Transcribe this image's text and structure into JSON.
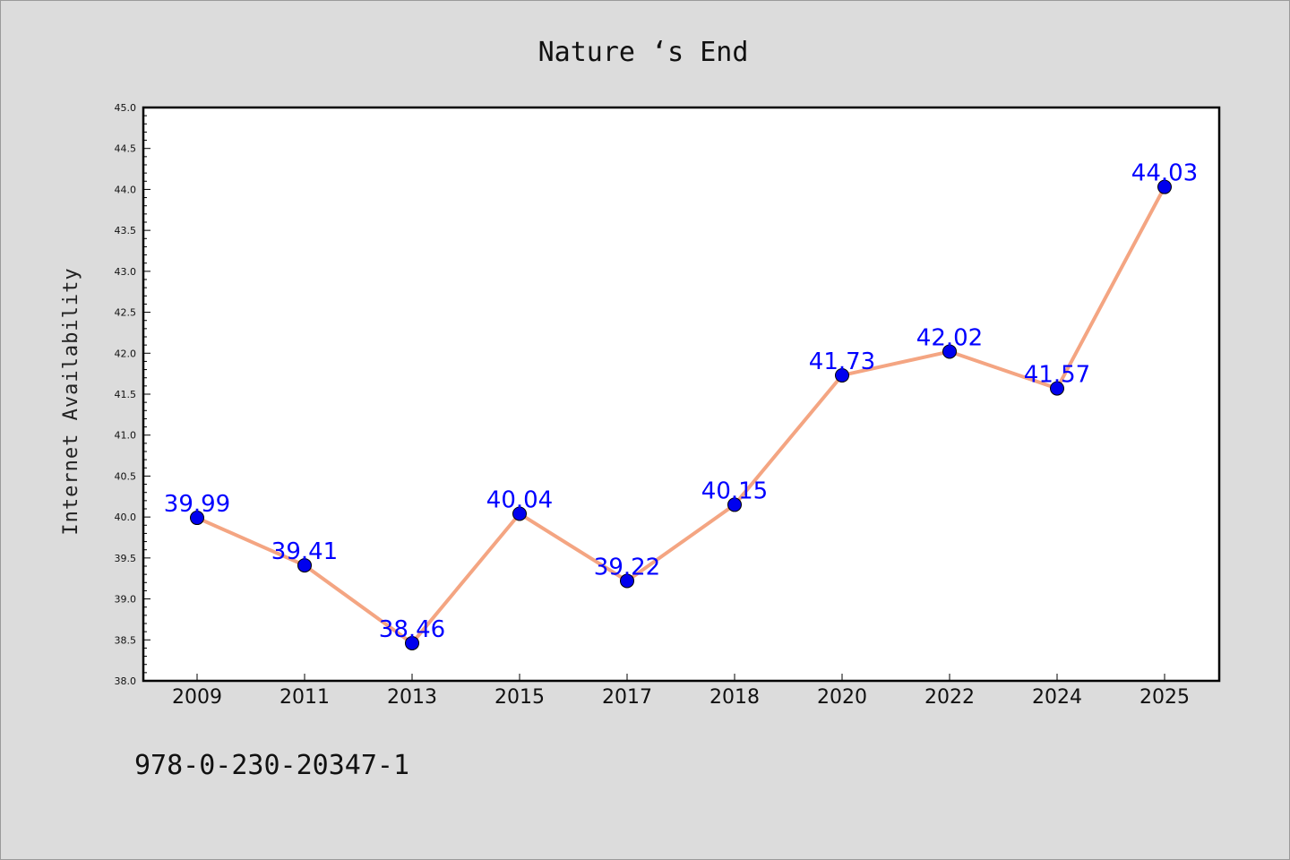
{
  "chart_data": {
    "type": "line",
    "title": "Nature ‘s End",
    "ylabel": "Internet Availability",
    "xlabel": "",
    "categories": [
      "2009",
      "2011",
      "2013",
      "2015",
      "2017",
      "2018",
      "2020",
      "2022",
      "2024",
      "2025"
    ],
    "values": [
      39.99,
      39.41,
      38.46,
      40.04,
      39.22,
      40.15,
      41.73,
      42.02,
      41.57,
      44.03
    ],
    "data_labels": [
      "39.99",
      "39.41",
      "38.46",
      "40.04",
      "39.22",
      "40.15",
      "41.73",
      "42.02",
      "41.57",
      "44.03"
    ],
    "ylim": [
      38.0,
      45.0
    ],
    "yticks": [
      "38.0",
      "38.5",
      "39.0",
      "39.5",
      "40.0",
      "40.5",
      "41.0",
      "41.5",
      "42.0",
      "42.5",
      "43.0",
      "43.5",
      "44.0",
      "44.5",
      "45.0"
    ],
    "grid": false,
    "colors": {
      "line": "#f4a582",
      "marker": "#0000ee",
      "label": "#0000ff",
      "background": "#dcdcdc",
      "plot_background": "#ffffff"
    }
  },
  "footer_text": "978-0-230-20347-1"
}
